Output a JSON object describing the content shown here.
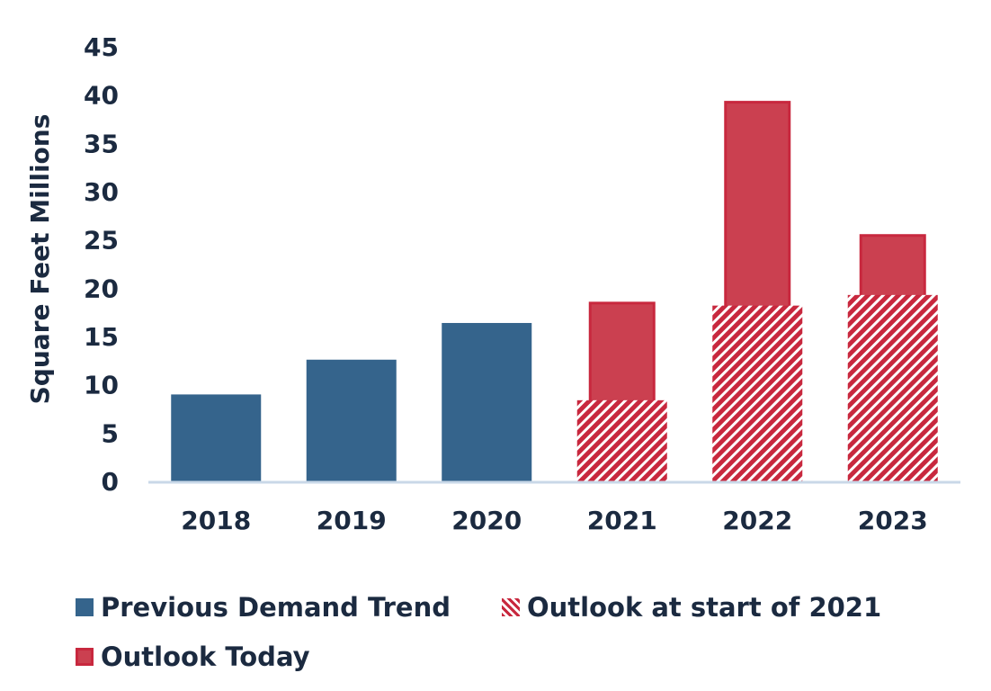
{
  "chart_data": {
    "type": "bar",
    "ylabel": "Square Feet Millions",
    "xlabel": "",
    "ylim": [
      0,
      45
    ],
    "yticks": [
      0,
      5,
      10,
      15,
      20,
      25,
      30,
      35,
      40,
      45
    ],
    "categories": [
      "2018",
      "2019",
      "2020",
      "2021",
      "2022",
      "2023"
    ],
    "series": [
      {
        "name": "Previous Demand Trend",
        "values": [
          9,
          12.6,
          16.4,
          null,
          null,
          null
        ],
        "color": "#35648c"
      },
      {
        "name": "Outlook at start of 2021",
        "values": [
          null,
          null,
          null,
          8.4,
          18.2,
          19.3
        ],
        "color": "#c8283e",
        "pattern": "diagonal-hatch"
      },
      {
        "name": "Outlook Today",
        "values": [
          null,
          null,
          null,
          18.6,
          39.4,
          25.6
        ],
        "color": "#cb4050",
        "border_color": "#c8283e"
      }
    ],
    "grid": false,
    "legend_position": "bottom"
  }
}
